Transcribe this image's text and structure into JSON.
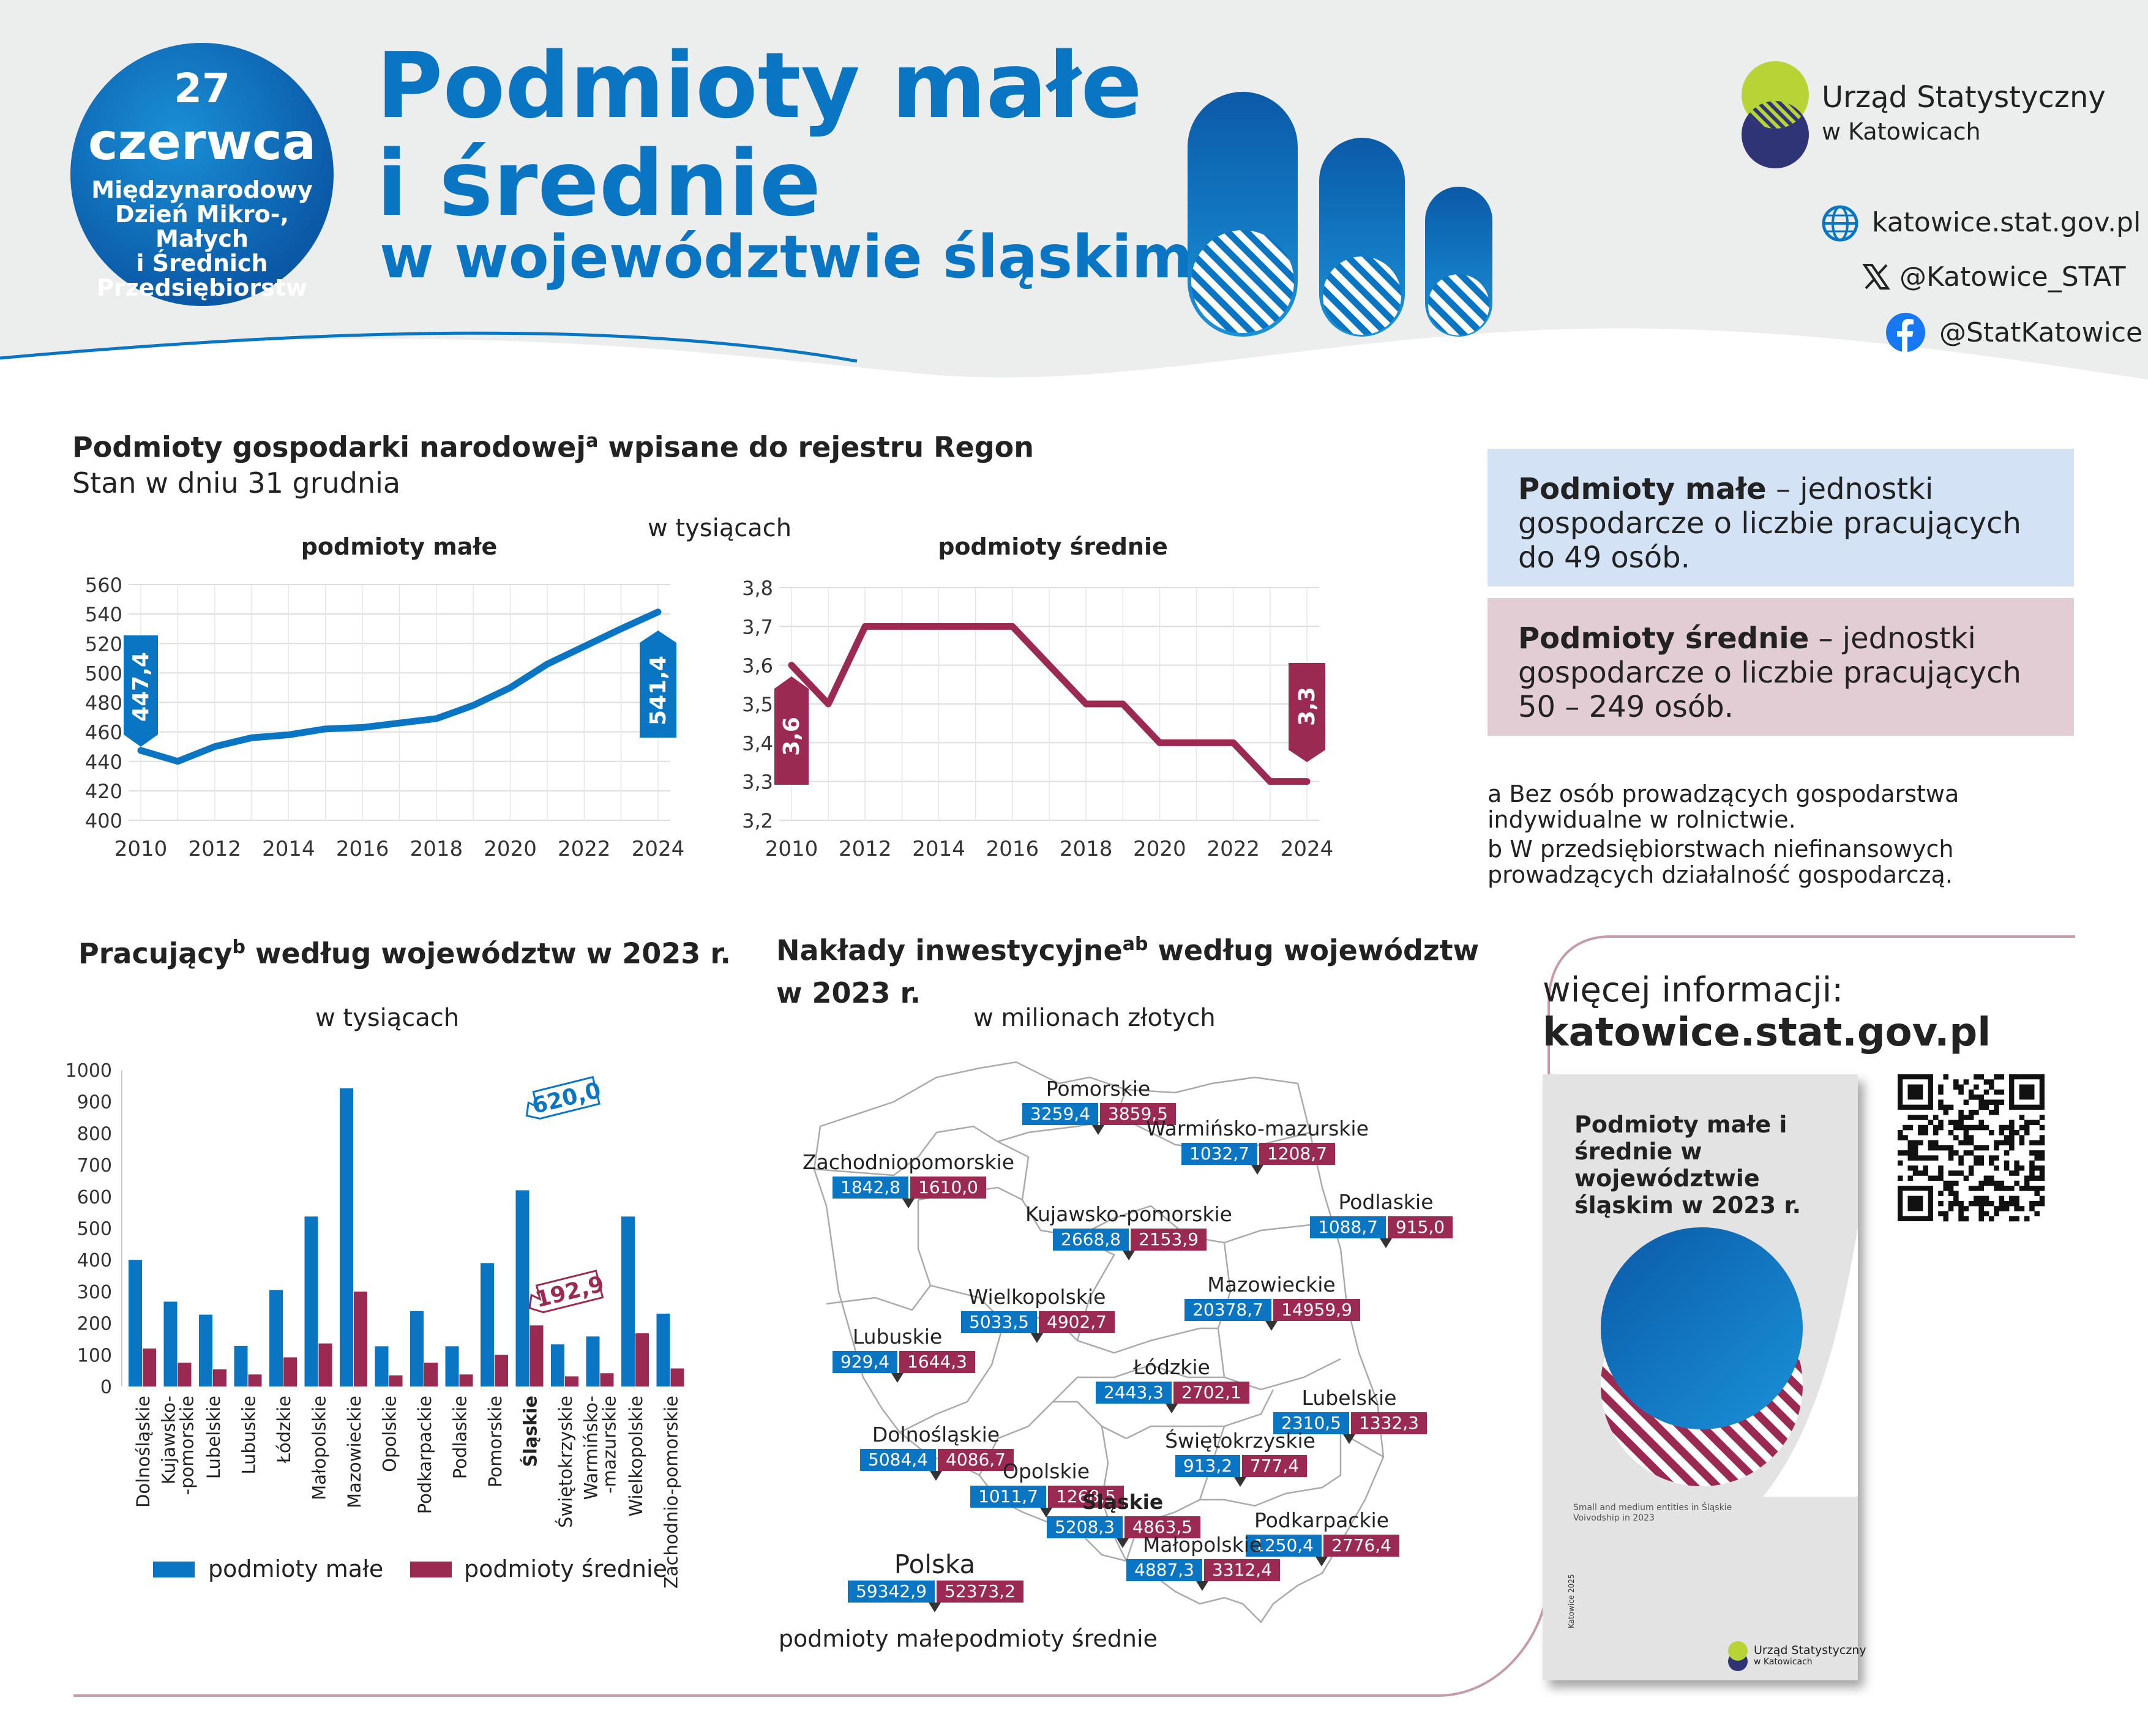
{
  "badge": {
    "day": "27",
    "month": "czerwca",
    "line1": "Międzynarodowy",
    "line2": "Dzień Mikro-, Małych",
    "line3": "i Średnich",
    "line4": "Przedsiębiorstw"
  },
  "title": {
    "line1": "Podmioty małe",
    "line2": "i średnie",
    "line3": "w województwie śląskim"
  },
  "office": {
    "name": "Urząd Statystyczny",
    "sub": "w Katowicach"
  },
  "social": {
    "web": "katowice.stat.gov.pl",
    "x": "@Katowice_STAT",
    "fb": "@StatKatowice"
  },
  "colors": {
    "blue": "#0a75c2",
    "maroon": "#9b2a52",
    "navy": "#2e3475",
    "lime": "#b8d335"
  },
  "regon": {
    "title": "Podmioty gospodarki narodowej",
    "title_sup": "a",
    "title_end": " wpisane do rejestru Regon",
    "subtitle": "Stan w dniu 31 grudnia",
    "unit": "w tysiącach"
  },
  "chart_data": [
    {
      "type": "line",
      "title": "podmioty małe",
      "x": [
        2010,
        2011,
        2012,
        2013,
        2014,
        2015,
        2016,
        2017,
        2018,
        2019,
        2020,
        2021,
        2022,
        2023,
        2024
      ],
      "values": [
        447.4,
        440,
        450,
        456,
        458,
        462,
        463,
        466,
        469,
        478,
        490,
        506,
        518,
        530,
        541.4
      ],
      "ylim": [
        400,
        560
      ],
      "yticks": [
        400,
        420,
        440,
        460,
        480,
        500,
        520,
        540,
        560
      ],
      "xticks": [
        2010,
        2012,
        2014,
        2016,
        2018,
        2020,
        2022,
        2024
      ],
      "label_first": "447,4",
      "label_last": "541,4",
      "color": "#0a75c2",
      "grid": true
    },
    {
      "type": "line",
      "title": "podmioty średnie",
      "x": [
        2010,
        2011,
        2012,
        2013,
        2014,
        2015,
        2016,
        2017,
        2018,
        2019,
        2020,
        2021,
        2022,
        2023,
        2024
      ],
      "values": [
        3.6,
        3.5,
        3.7,
        3.7,
        3.7,
        3.7,
        3.7,
        3.6,
        3.5,
        3.5,
        3.4,
        3.4,
        3.4,
        3.3,
        3.3
      ],
      "ylim": [
        3.2,
        3.8
      ],
      "yticks": [
        "3,2",
        "3,3",
        "3,4",
        "3,5",
        "3,6",
        "3,7",
        "3,8"
      ],
      "xticks": [
        2010,
        2012,
        2014,
        2016,
        2018,
        2020,
        2022,
        2024
      ],
      "label_first": "3,6",
      "label_last": "3,3",
      "color": "#9b2a52",
      "grid": true
    },
    {
      "type": "bar",
      "title": "Pracujący",
      "title_sup": "b",
      "title_end": "  według województw w 2023 r.",
      "unit": "w tysiącach",
      "categories": [
        "Dolnośląskie",
        "Kujawsko--pomorskie",
        "Lubelskie",
        "Lubuskie",
        "Łódzkie",
        "Małopolskie",
        "Mazowieckie",
        "Opolskie",
        "Podkarpackie",
        "Podlaskie",
        "Pomorskie",
        "Śląskie",
        "Świętokrzyskie",
        "Warmińsko--mazurskie",
        "Wielkopolskie",
        "Zachodnio-pomorskie"
      ],
      "series": [
        {
          "name": "podmioty małe",
          "color": "#0a75c2",
          "values": [
            400,
            268,
            227,
            128,
            305,
            537,
            942,
            127,
            238,
            127,
            390,
            620.0,
            133,
            158,
            537,
            230
          ]
        },
        {
          "name": "podmioty średnie",
          "color": "#9b2a52",
          "values": [
            120,
            75,
            54,
            38,
            92,
            136,
            300,
            35,
            75,
            38,
            100,
            192.9,
            32,
            42,
            168,
            57
          ]
        }
      ],
      "ylim": [
        0,
        1000
      ],
      "yticks": [
        0,
        100,
        200,
        300,
        400,
        500,
        600,
        700,
        800,
        900,
        1000
      ],
      "highlight": {
        "category": "Śląskie",
        "small": "620,0",
        "medium": "192,9"
      },
      "legend": "bottom"
    },
    {
      "type": "table",
      "title": "Nakłady inwestycyjne",
      "title_sup": "ab",
      "title_end": " według województw",
      "title_line2": "w 2023 r.",
      "unit": "w milionach złotych",
      "rows": [
        {
          "name": "Pomorskie",
          "small": "3259,4",
          "medium": "3859,5"
        },
        {
          "name": "Warmińsko-mazurskie",
          "small": "1032,7",
          "medium": "1208,7"
        },
        {
          "name": "Zachodniopomorskie",
          "small": "1842,8",
          "medium": "1610,0"
        },
        {
          "name": "Podlaskie",
          "small": "1088,7",
          "medium": "915,0"
        },
        {
          "name": "Kujawsko-pomorskie",
          "small": "2668,8",
          "medium": "2153,9"
        },
        {
          "name": "Mazowieckie",
          "small": "20378,7",
          "medium": "14959,9"
        },
        {
          "name": "Wielkopolskie",
          "small": "5033,5",
          "medium": "4902,7"
        },
        {
          "name": "Lubuskie",
          "small": "929,4",
          "medium": "1644,3"
        },
        {
          "name": "Łódzkie",
          "small": "2443,3",
          "medium": "2702,1"
        },
        {
          "name": "Lubelskie",
          "small": "2310,5",
          "medium": "1332,3"
        },
        {
          "name": "Dolnośląskie",
          "small": "5084,4",
          "medium": "4086,7"
        },
        {
          "name": "Świętokrzyskie",
          "small": "913,2",
          "medium": "777,4"
        },
        {
          "name": "Opolskie",
          "small": "1011,7",
          "medium": "1268,5"
        },
        {
          "name": "Śląskie",
          "small": "5208,3",
          "medium": "4863,5"
        },
        {
          "name": "Podkarpackie",
          "small": "1250,4",
          "medium": "2776,4"
        },
        {
          "name": "Małopolskie",
          "small": "4887,3",
          "medium": "3312,4"
        }
      ],
      "total": {
        "name": "Polska",
        "small": "59342,9",
        "medium": "52373,2"
      },
      "legend_small": "podmioty małe",
      "legend_medium": "podmioty średnie"
    }
  ],
  "definitions": {
    "small_term": "Podmioty małe",
    "small_text": " – jednostki gospodarcze o liczbie pracujących do 49 osób.",
    "medium_term": "Podmioty średnie",
    "medium_text": " – jednostki gospodarcze o liczbie pracujących 50 – 249 osób."
  },
  "footnotes": {
    "a": "a  Bez osób prowadzących gospodarstwa indywidualne w rolnictwie.",
    "b": "b  W przedsiębiorstwach niefinansowych prowadzących działalność gospodarczą."
  },
  "more": {
    "label": "więcej informacji:",
    "url": "katowice.stat.gov.pl"
  },
  "publication": {
    "title": "Podmioty małe i średnie w województwie śląskim w 2023 r.",
    "english": "Small and medium entities in Śląskie Voivodship in 2023",
    "year": "Katowice 2025",
    "office1": "Urząd Statystyczny",
    "office2": "w Katowicach"
  }
}
